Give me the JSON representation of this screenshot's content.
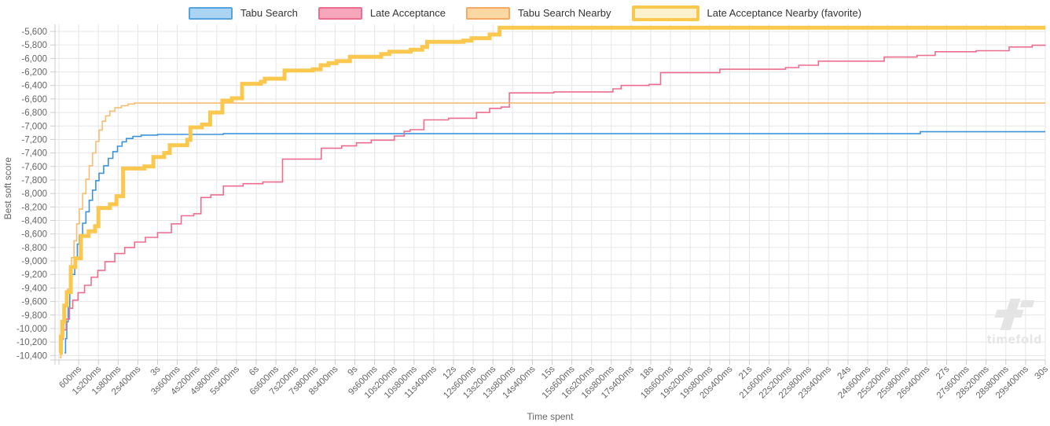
{
  "legend": {
    "items": [
      {
        "label": "Tabu Search",
        "fill": "#abd4f2",
        "border": "#54a5df",
        "thick": false
      },
      {
        "label": "Late Acceptance",
        "fill": "#f7a7bc",
        "border": "#ee6d8e",
        "thick": false
      },
      {
        "label": "Tabu Search Nearby",
        "fill": "#fbd7a3",
        "border": "#f5ab64",
        "thick": false
      },
      {
        "label": "Late Acceptance Nearby (favorite)",
        "fill": "#fdf2cd",
        "border": "#fbc84f",
        "thick": true
      }
    ]
  },
  "axes": {
    "y_title": "Best soft score",
    "x_title": "Time spent",
    "y_ticks": [
      "-5,600",
      "-5,800",
      "-6,000",
      "-6,200",
      "-6,400",
      "-6,600",
      "-6,800",
      "-7,000",
      "-7,200",
      "-7,400",
      "-7,600",
      "-7,800",
      "-8,000",
      "-8,200",
      "-8,400",
      "-8,600",
      "-8,800",
      "-9,000",
      "-9,200",
      "-9,400",
      "-9,600",
      "-9,800",
      "-10,000",
      "-10,200",
      "-10,400"
    ],
    "x_ticks": [
      "600ms",
      "1s200ms",
      "1s800ms",
      "2s400ms",
      "3s",
      "3s600ms",
      "4s200ms",
      "4s800ms",
      "5s400ms",
      "6s",
      "6s600ms",
      "7s200ms",
      "7s800ms",
      "8s400ms",
      "9s",
      "9s600ms",
      "10s200ms",
      "10s800ms",
      "11s400ms",
      "12s",
      "12s600ms",
      "13s200ms",
      "13s800ms",
      "14s400ms",
      "15s",
      "15s600ms",
      "16s200ms",
      "16s800ms",
      "17s400ms",
      "18s",
      "18s600ms",
      "19s200ms",
      "19s800ms",
      "20s400ms",
      "21s",
      "21s600ms",
      "22s200ms",
      "22s800ms",
      "23s400ms",
      "24s",
      "24s600ms",
      "25s200ms",
      "25s800ms",
      "26s400ms",
      "27s",
      "27s600ms",
      "28s200ms",
      "28s800ms",
      "29s400ms",
      "30s"
    ]
  },
  "watermark": {
    "text": "timefold"
  },
  "chart_data": {
    "type": "line",
    "step": true,
    "title": "",
    "xlabel": "Time spent",
    "ylabel": "Best soft score",
    "x_unit": "seconds",
    "xlim": [
      0,
      30
    ],
    "ylim": [
      -10470,
      -5490
    ],
    "y_tick_step": 200,
    "grid": true,
    "grid_color": "#e6e6e6",
    "axis_color": "#cccccc",
    "legend_position": "top",
    "series": [
      {
        "name": "Tabu Search",
        "color": "#3d94dd",
        "line_width": 1.6,
        "final_value": -7085,
        "points": [
          [
            0.17,
            -10360
          ],
          [
            0.2,
            -10150
          ],
          [
            0.24,
            -9900
          ],
          [
            0.28,
            -9680
          ],
          [
            0.33,
            -9450
          ],
          [
            0.4,
            -9200
          ],
          [
            0.48,
            -8950
          ],
          [
            0.56,
            -8750
          ],
          [
            0.62,
            -8620
          ],
          [
            0.72,
            -8440
          ],
          [
            0.82,
            -8270
          ],
          [
            0.92,
            -8100
          ],
          [
            1.02,
            -7950
          ],
          [
            1.12,
            -7810
          ],
          [
            1.22,
            -7700
          ],
          [
            1.36,
            -7590
          ],
          [
            1.5,
            -7480
          ],
          [
            1.64,
            -7380
          ],
          [
            1.78,
            -7300
          ],
          [
            1.92,
            -7235
          ],
          [
            2.05,
            -7185
          ],
          [
            2.25,
            -7155
          ],
          [
            2.5,
            -7135
          ],
          [
            3.0,
            -7125
          ],
          [
            5.0,
            -7115
          ],
          [
            26.2,
            -7085
          ],
          [
            30,
            -7085
          ]
        ]
      },
      {
        "name": "Late Acceptance",
        "color": "#ee6d8e",
        "line_width": 1.6,
        "final_value": -5800,
        "points": [
          [
            0.03,
            -10310
          ],
          [
            0.08,
            -10160
          ],
          [
            0.13,
            -10020
          ],
          [
            0.22,
            -9860
          ],
          [
            0.32,
            -9700
          ],
          [
            0.42,
            -9580
          ],
          [
            0.58,
            -9470
          ],
          [
            0.78,
            -9360
          ],
          [
            0.98,
            -9240
          ],
          [
            1.18,
            -9140
          ],
          [
            1.4,
            -9010
          ],
          [
            1.7,
            -8890
          ],
          [
            2.0,
            -8800
          ],
          [
            2.3,
            -8720
          ],
          [
            2.63,
            -8650
          ],
          [
            3.0,
            -8580
          ],
          [
            3.42,
            -8450
          ],
          [
            3.72,
            -8330
          ],
          [
            4.1,
            -8300
          ],
          [
            4.32,
            -8060
          ],
          [
            4.62,
            -8020
          ],
          [
            5.0,
            -7890
          ],
          [
            5.6,
            -7855
          ],
          [
            6.2,
            -7830
          ],
          [
            6.8,
            -7490
          ],
          [
            7.98,
            -7330
          ],
          [
            8.6,
            -7295
          ],
          [
            9.05,
            -7250
          ],
          [
            9.5,
            -7210
          ],
          [
            10.2,
            -7150
          ],
          [
            10.5,
            -7080
          ],
          [
            10.68,
            -7055
          ],
          [
            11.1,
            -6910
          ],
          [
            11.85,
            -6885
          ],
          [
            12.7,
            -6800
          ],
          [
            13.1,
            -6740
          ],
          [
            13.45,
            -6720
          ],
          [
            13.7,
            -6510
          ],
          [
            15.05,
            -6495
          ],
          [
            16.85,
            -6450
          ],
          [
            17.1,
            -6400
          ],
          [
            17.95,
            -6385
          ],
          [
            18.3,
            -6210
          ],
          [
            20.1,
            -6160
          ],
          [
            22.1,
            -6135
          ],
          [
            22.5,
            -6100
          ],
          [
            23.1,
            -6040
          ],
          [
            25.1,
            -5980
          ],
          [
            26.1,
            -5955
          ],
          [
            26.65,
            -5900
          ],
          [
            27.9,
            -5885
          ],
          [
            28.9,
            -5830
          ],
          [
            29.6,
            -5805
          ],
          [
            30,
            -5800
          ]
        ]
      },
      {
        "name": "Tabu Search Nearby",
        "color": "#f8bc72",
        "line_width": 1.6,
        "final_value": -6660,
        "points": [
          [
            0.02,
            -10430
          ],
          [
            0.06,
            -10280
          ],
          [
            0.1,
            -10100
          ],
          [
            0.15,
            -9880
          ],
          [
            0.2,
            -9650
          ],
          [
            0.26,
            -9420
          ],
          [
            0.32,
            -9180
          ],
          [
            0.38,
            -8950
          ],
          [
            0.46,
            -8700
          ],
          [
            0.54,
            -8450
          ],
          [
            0.62,
            -8230
          ],
          [
            0.72,
            -8000
          ],
          [
            0.82,
            -7790
          ],
          [
            0.92,
            -7590
          ],
          [
            1.02,
            -7400
          ],
          [
            1.12,
            -7230
          ],
          [
            1.22,
            -7060
          ],
          [
            1.32,
            -6930
          ],
          [
            1.42,
            -6850
          ],
          [
            1.55,
            -6780
          ],
          [
            1.7,
            -6730
          ],
          [
            1.9,
            -6700
          ],
          [
            2.1,
            -6675
          ],
          [
            2.3,
            -6660
          ],
          [
            30,
            -6660
          ]
        ]
      },
      {
        "name": "Late Acceptance Nearby (favorite)",
        "color": "#fbc84f",
        "line_width": 5,
        "final_value": -5545,
        "points": [
          [
            0.02,
            -10360
          ],
          [
            0.06,
            -10120
          ],
          [
            0.1,
            -9900
          ],
          [
            0.16,
            -9660
          ],
          [
            0.24,
            -9460
          ],
          [
            0.36,
            -9090
          ],
          [
            0.5,
            -8960
          ],
          [
            0.67,
            -8630
          ],
          [
            0.9,
            -8560
          ],
          [
            1.1,
            -8485
          ],
          [
            1.2,
            -8215
          ],
          [
            1.55,
            -8160
          ],
          [
            1.75,
            -8040
          ],
          [
            1.95,
            -7630
          ],
          [
            2.6,
            -7600
          ],
          [
            2.87,
            -7460
          ],
          [
            3.2,
            -7400
          ],
          [
            3.37,
            -7285
          ],
          [
            3.9,
            -7205
          ],
          [
            4.0,
            -7020
          ],
          [
            4.35,
            -6980
          ],
          [
            4.6,
            -6800
          ],
          [
            4.97,
            -6625
          ],
          [
            5.26,
            -6590
          ],
          [
            5.57,
            -6375
          ],
          [
            6.14,
            -6345
          ],
          [
            6.26,
            -6300
          ],
          [
            6.86,
            -6180
          ],
          [
            7.72,
            -6160
          ],
          [
            7.96,
            -6100
          ],
          [
            8.2,
            -6070
          ],
          [
            8.44,
            -6040
          ],
          [
            8.85,
            -5975
          ],
          [
            9.8,
            -5935
          ],
          [
            10.05,
            -5900
          ],
          [
            10.7,
            -5870
          ],
          [
            11.05,
            -5830
          ],
          [
            11.2,
            -5755
          ],
          [
            12.3,
            -5735
          ],
          [
            12.55,
            -5700
          ],
          [
            13.1,
            -5645
          ],
          [
            13.4,
            -5545
          ],
          [
            30,
            -5545
          ]
        ]
      }
    ]
  }
}
